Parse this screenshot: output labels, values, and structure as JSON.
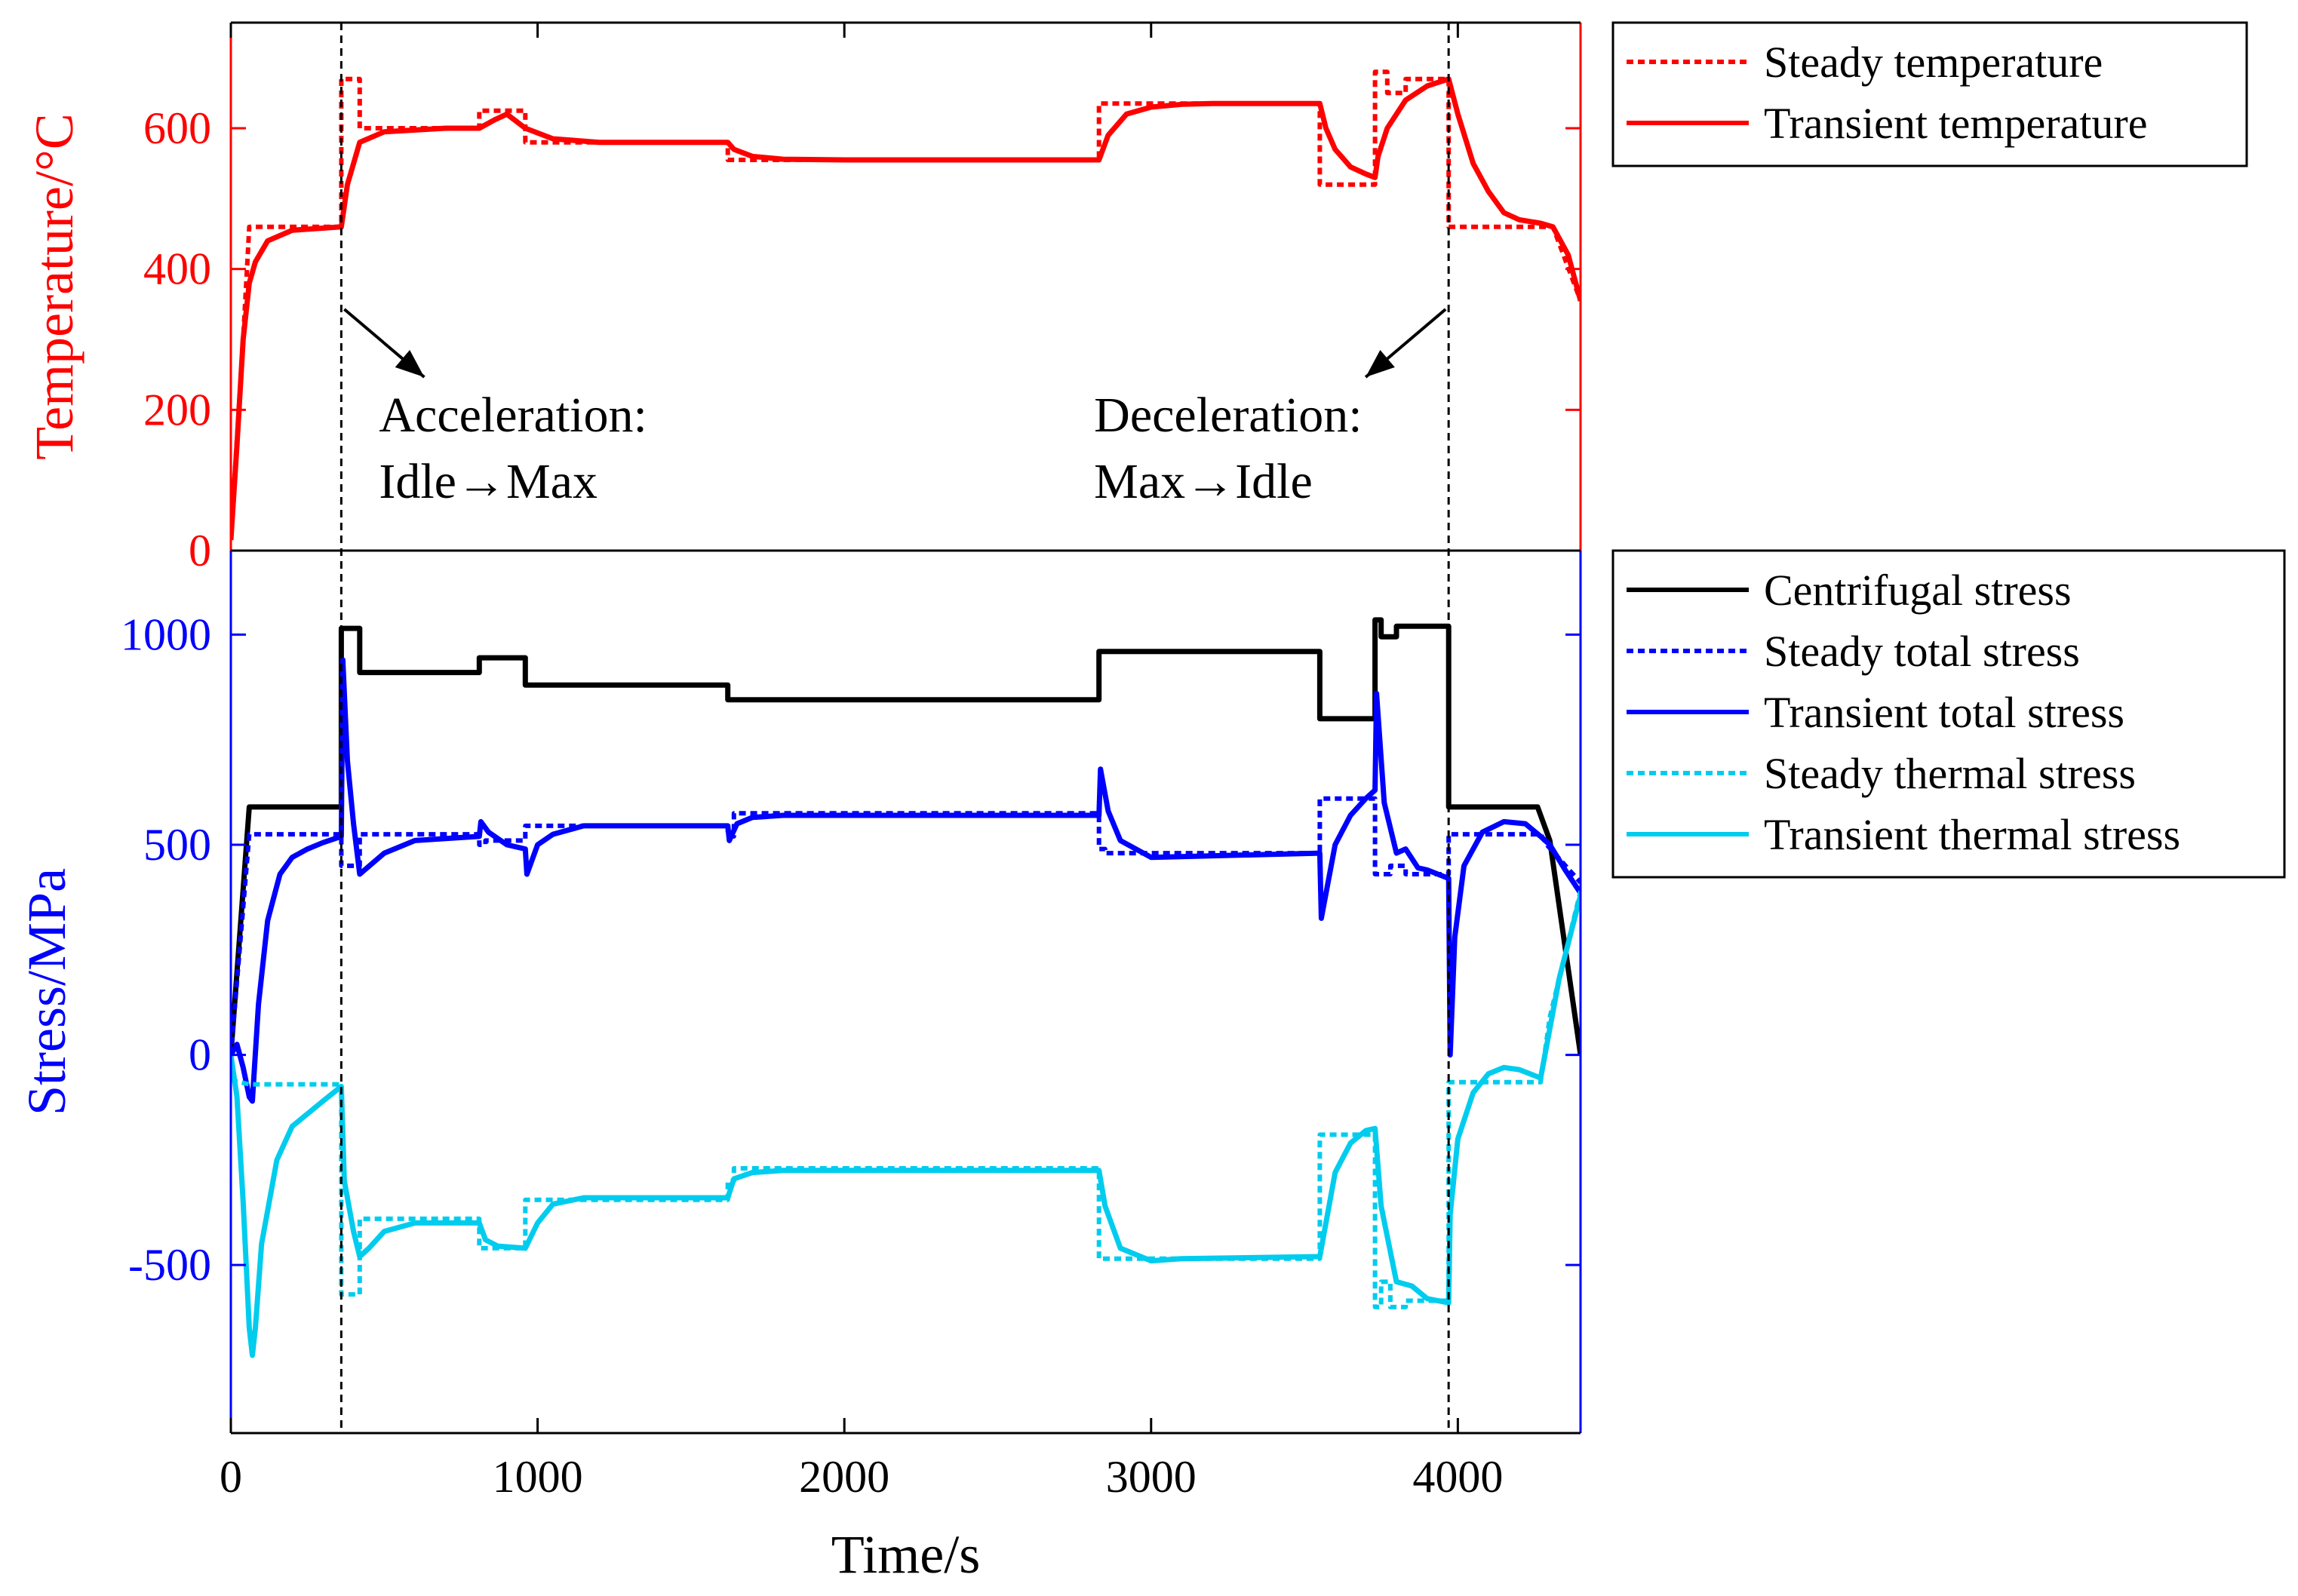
{
  "chart_data": [
    {
      "type": "line",
      "panel": "temperature",
      "ylabel": "Temperature/°C",
      "ylim": [
        0,
        750
      ],
      "xlim": [
        0,
        4400
      ],
      "yticks": [
        0,
        200,
        400,
        600
      ],
      "yticklabels": [
        "0",
        "200",
        "400",
        "600"
      ],
      "axis_color": "#ff0000",
      "legend_position": "outside-right-top",
      "series": [
        {
          "name": "Steady temperature",
          "color": "#ff0000",
          "style": "dotted",
          "x": [
            0,
            40,
            60,
            60,
            360,
            360,
            420,
            420,
            810,
            810,
            960,
            960,
            1620,
            1620,
            2830,
            2830,
            3550,
            3550,
            3730,
            3730,
            3770,
            3770,
            3830,
            3830,
            3970,
            3970,
            4270,
            4310,
            4400
          ],
          "y": [
            20,
            300,
            460,
            460,
            460,
            670,
            670,
            600,
            600,
            625,
            625,
            580,
            580,
            555,
            555,
            635,
            635,
            520,
            520,
            680,
            680,
            650,
            650,
            670,
            670,
            460,
            460,
            460,
            355
          ]
        },
        {
          "name": "Transient temperature",
          "color": "#ff0000",
          "style": "solid",
          "x": [
            0,
            20,
            40,
            60,
            80,
            120,
            200,
            360,
            380,
            420,
            500,
            700,
            810,
            860,
            900,
            960,
            1050,
            1200,
            1620,
            1640,
            1700,
            1800,
            2000,
            2830,
            2860,
            2920,
            3000,
            3100,
            3200,
            3550,
            3570,
            3600,
            3650,
            3700,
            3730,
            3740,
            3770,
            3830,
            3900,
            3970,
            4000,
            4050,
            4100,
            4150,
            4200,
            4270,
            4310,
            4360,
            4400
          ],
          "y": [
            15,
            150,
            300,
            380,
            410,
            440,
            455,
            460,
            520,
            580,
            595,
            600,
            600,
            612,
            620,
            600,
            585,
            580,
            580,
            570,
            560,
            556,
            555,
            555,
            590,
            620,
            630,
            634,
            635,
            635,
            600,
            570,
            545,
            535,
            530,
            560,
            600,
            640,
            660,
            670,
            620,
            550,
            510,
            480,
            470,
            465,
            460,
            420,
            355
          ]
        }
      ],
      "annotations": [
        {
          "label": "Acceleration:",
          "line2": "Idle→Max",
          "x": 360
        },
        {
          "label": "Deceleration:",
          "line2": "Max→Idle",
          "x": 3970
        }
      ]
    },
    {
      "type": "line",
      "panel": "stress",
      "xlabel": "Time/s",
      "ylabel": "Stress/MPa",
      "ylim": [
        -900,
        1200
      ],
      "xlim": [
        0,
        4400
      ],
      "xticks": [
        0,
        1000,
        2000,
        3000,
        4000
      ],
      "xticklabels": [
        "0",
        "1000",
        "2000",
        "3000",
        "4000"
      ],
      "yticks": [
        -500,
        0,
        500,
        1000
      ],
      "yticklabels": [
        "-500",
        "0",
        "500",
        "1000"
      ],
      "axis_color": "#0000ff",
      "legend_position": "outside-right-top",
      "series": [
        {
          "name": "Centrifugal stress",
          "color": "#000000",
          "style": "solid",
          "x": [
            0,
            60,
            360,
            360,
            420,
            420,
            810,
            810,
            960,
            960,
            1620,
            1620,
            2830,
            2830,
            3550,
            3550,
            3720,
            3730,
            3730,
            3750,
            3750,
            3800,
            3800,
            3970,
            3970,
            4260,
            4300,
            4400
          ],
          "y": [
            0,
            590,
            590,
            1015,
            1015,
            910,
            910,
            945,
            945,
            880,
            880,
            845,
            845,
            960,
            960,
            800,
            800,
            800,
            1035,
            1035,
            995,
            995,
            1020,
            1020,
            590,
            590,
            510,
            0
          ]
        },
        {
          "name": "Steady total stress",
          "color": "#0000ff",
          "style": "dotted",
          "x": [
            0,
            60,
            360,
            360,
            420,
            420,
            810,
            810,
            830,
            830,
            960,
            960,
            1620,
            1620,
            1640,
            1640,
            2830,
            2830,
            2850,
            2850,
            3550,
            3550,
            3730,
            3730,
            3780,
            3780,
            3830,
            3830,
            3970,
            3970,
            4270,
            4290,
            4400
          ],
          "y": [
            0,
            525,
            525,
            450,
            450,
            525,
            525,
            500,
            500,
            510,
            510,
            545,
            545,
            520,
            520,
            575,
            575,
            490,
            490,
            480,
            480,
            610,
            610,
            430,
            430,
            450,
            450,
            430,
            430,
            525,
            525,
            500,
            410
          ]
        },
        {
          "name": "Transient total stress",
          "color": "#0000ff",
          "style": "solid",
          "x": [
            0,
            20,
            40,
            60,
            70,
            90,
            120,
            160,
            200,
            250,
            300,
            360,
            365,
            380,
            400,
            420,
            500,
            600,
            810,
            815,
            840,
            900,
            960,
            965,
            1000,
            1050,
            1150,
            1620,
            1625,
            1650,
            1700,
            1800,
            2830,
            2835,
            2860,
            2900,
            3000,
            3550,
            3555,
            3600,
            3650,
            3700,
            3730,
            3735,
            3760,
            3800,
            3830,
            3870,
            3900,
            3970,
            3975,
            3990,
            4020,
            4080,
            4150,
            4220,
            4270,
            4300,
            4350,
            4400
          ],
          "y": [
            0,
            25,
            -30,
            -100,
            -110,
            120,
            320,
            430,
            470,
            490,
            505,
            520,
            940,
            700,
            550,
            430,
            480,
            510,
            520,
            555,
            530,
            500,
            490,
            430,
            500,
            525,
            545,
            545,
            510,
            550,
            565,
            570,
            570,
            680,
            580,
            510,
            470,
            480,
            325,
            500,
            570,
            610,
            630,
            860,
            600,
            480,
            490,
            445,
            440,
            420,
            0,
            280,
            450,
            530,
            555,
            550,
            520,
            500,
            440,
            385
          ]
        },
        {
          "name": "Steady thermal stress",
          "color": "#00ccee",
          "style": "dotted",
          "x": [
            0,
            60,
            360,
            360,
            420,
            420,
            810,
            810,
            960,
            960,
            1620,
            1620,
            1640,
            1640,
            2830,
            2830,
            2850,
            2850,
            3550,
            3550,
            3730,
            3730,
            3750,
            3750,
            3780,
            3780,
            3830,
            3830,
            3970,
            3970,
            4270,
            4300,
            4400
          ],
          "y": [
            -60,
            -70,
            -70,
            -570,
            -570,
            -390,
            -390,
            -460,
            -460,
            -345,
            -345,
            -300,
            -300,
            -270,
            -270,
            -485,
            -485,
            -485,
            -485,
            -190,
            -190,
            -600,
            -600,
            -540,
            -540,
            -600,
            -600,
            -585,
            -585,
            -65,
            -65,
            90,
            390
          ]
        },
        {
          "name": "Transient thermal stress",
          "color": "#00ccee",
          "style": "solid",
          "x": [
            0,
            20,
            40,
            60,
            70,
            80,
            100,
            150,
            200,
            300,
            360,
            370,
            400,
            420,
            450,
            500,
            600,
            810,
            830,
            870,
            960,
            1000,
            1050,
            1150,
            1620,
            1640,
            1700,
            1800,
            2830,
            2850,
            2900,
            3000,
            3100,
            3550,
            3600,
            3650,
            3700,
            3730,
            3750,
            3800,
            3850,
            3900,
            3970,
            3975,
            4000,
            4050,
            4100,
            4150,
            4200,
            4270,
            4330,
            4400
          ],
          "y": [
            0,
            -100,
            -350,
            -650,
            -715,
            -650,
            -450,
            -250,
            -170,
            -110,
            -75,
            -300,
            -420,
            -480,
            -460,
            -420,
            -400,
            -400,
            -440,
            -455,
            -460,
            -400,
            -355,
            -340,
            -340,
            -295,
            -280,
            -275,
            -275,
            -360,
            -460,
            -490,
            -485,
            -480,
            -280,
            -210,
            -180,
            -175,
            -360,
            -540,
            -550,
            -580,
            -590,
            -380,
            -200,
            -90,
            -45,
            -30,
            -35,
            -55,
            180,
            380
          ]
        }
      ]
    }
  ]
}
